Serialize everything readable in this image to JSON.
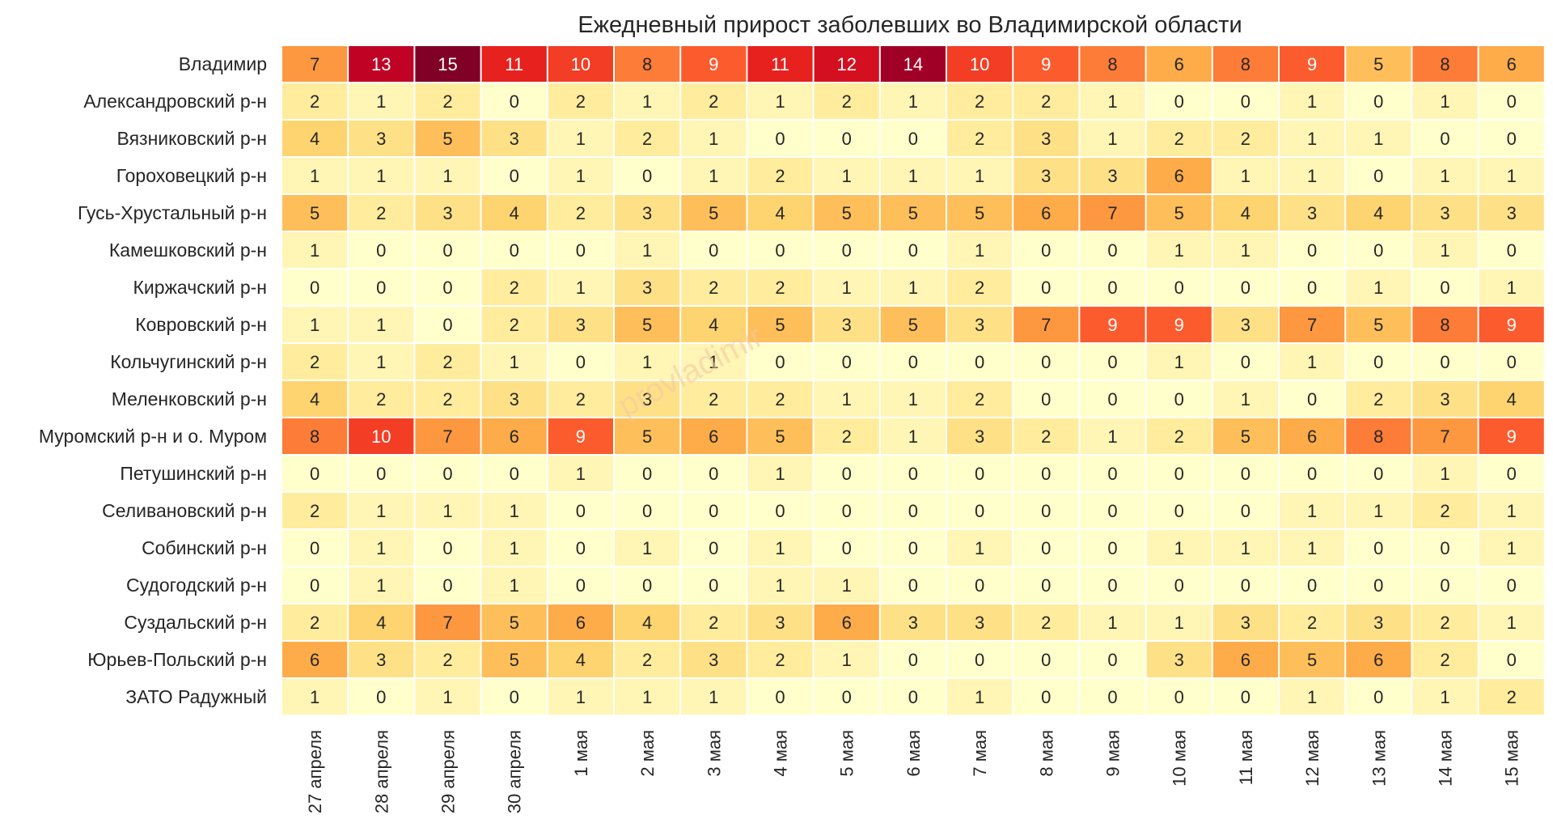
{
  "chart_data": {
    "type": "heatmap",
    "title": "Ежедневный прирост заболевших во Владимирской области",
    "watermark": "provladimir",
    "rows": [
      "Владимир",
      "Александровский р-н",
      "Вязниковский р-н",
      "Гороховецкий р-н",
      "Гусь-Хрустальный р-н",
      "Камешковский р-н",
      "Киржачский р-н",
      "Ковровский р-н",
      "Кольчугинский р-н",
      "Меленковский р-н",
      "Муромский р-н и о. Муром",
      "Петушинский р-н",
      "Селивановский р-н",
      "Собинский р-н",
      "Судогодский р-н",
      "Суздальский р-н",
      "Юрьев-Польский р-н",
      "ЗАТО Радужный"
    ],
    "columns": [
      "27 апреля",
      "28 апреля",
      "29 апреля",
      "30 апреля",
      "1 мая",
      "2 мая",
      "3 мая",
      "4 мая",
      "5 мая",
      "6 мая",
      "7 мая",
      "8 мая",
      "9 мая",
      "10 мая",
      "11 мая",
      "12 мая",
      "13 мая",
      "14 мая",
      "15 мая"
    ],
    "values": [
      [
        7,
        13,
        15,
        11,
        10,
        8,
        9,
        11,
        12,
        14,
        10,
        9,
        8,
        6,
        8,
        9,
        5,
        8,
        6
      ],
      [
        2,
        1,
        2,
        0,
        2,
        1,
        2,
        1,
        2,
        1,
        2,
        2,
        1,
        0,
        0,
        1,
        0,
        1,
        0
      ],
      [
        4,
        3,
        5,
        3,
        1,
        2,
        1,
        0,
        0,
        0,
        2,
        3,
        1,
        2,
        2,
        1,
        1,
        0,
        0
      ],
      [
        1,
        1,
        1,
        0,
        1,
        0,
        1,
        2,
        1,
        1,
        1,
        3,
        3,
        6,
        1,
        1,
        0,
        1,
        1
      ],
      [
        5,
        2,
        3,
        4,
        2,
        3,
        5,
        4,
        5,
        5,
        5,
        6,
        7,
        5,
        4,
        3,
        4,
        3,
        3
      ],
      [
        1,
        0,
        0,
        0,
        0,
        1,
        0,
        0,
        0,
        0,
        1,
        0,
        0,
        1,
        1,
        0,
        0,
        1,
        0
      ],
      [
        0,
        0,
        0,
        2,
        1,
        3,
        2,
        2,
        1,
        1,
        2,
        0,
        0,
        0,
        0,
        0,
        1,
        0,
        1
      ],
      [
        1,
        1,
        0,
        2,
        3,
        5,
        4,
        5,
        3,
        5,
        3,
        7,
        9,
        9,
        3,
        7,
        5,
        8,
        9
      ],
      [
        2,
        1,
        2,
        1,
        0,
        1,
        1,
        0,
        0,
        0,
        0,
        0,
        0,
        1,
        0,
        1,
        0,
        0,
        0
      ],
      [
        4,
        2,
        2,
        3,
        2,
        3,
        2,
        2,
        1,
        1,
        2,
        0,
        0,
        0,
        1,
        0,
        2,
        3,
        4
      ],
      [
        8,
        10,
        7,
        6,
        9,
        5,
        6,
        5,
        2,
        1,
        3,
        2,
        1,
        2,
        5,
        6,
        8,
        7,
        9
      ],
      [
        0,
        0,
        0,
        0,
        1,
        0,
        0,
        1,
        0,
        0,
        0,
        0,
        0,
        0,
        0,
        0,
        0,
        1,
        0
      ],
      [
        2,
        1,
        1,
        1,
        0,
        0,
        0,
        0,
        0,
        0,
        0,
        0,
        0,
        0,
        0,
        1,
        1,
        2,
        1
      ],
      [
        0,
        1,
        0,
        1,
        0,
        1,
        0,
        1,
        0,
        0,
        1,
        0,
        0,
        1,
        1,
        1,
        0,
        0,
        1
      ],
      [
        0,
        1,
        0,
        1,
        0,
        0,
        0,
        1,
        1,
        0,
        0,
        0,
        0,
        0,
        0,
        0,
        0,
        0,
        0
      ],
      [
        2,
        4,
        7,
        5,
        6,
        4,
        2,
        3,
        6,
        3,
        3,
        2,
        1,
        1,
        3,
        2,
        3,
        2,
        1
      ],
      [
        6,
        3,
        2,
        5,
        4,
        2,
        3,
        2,
        1,
        0,
        0,
        0,
        0,
        3,
        6,
        5,
        6,
        2,
        0
      ],
      [
        1,
        0,
        1,
        0,
        1,
        1,
        1,
        0,
        0,
        0,
        1,
        0,
        0,
        0,
        0,
        1,
        0,
        1,
        2
      ]
    ],
    "value_range": [
      0,
      15
    ],
    "colormap": "YlOrRd",
    "color_stops": [
      "#ffffcc",
      "#ffeda0",
      "#fed976",
      "#feb24c",
      "#fd8d3c",
      "#fc4e2a",
      "#e31a1c",
      "#bd0026",
      "#800026"
    ]
  }
}
